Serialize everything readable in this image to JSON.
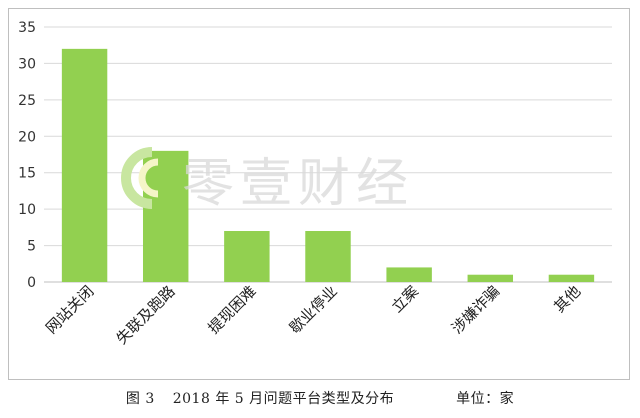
{
  "chart_data": {
    "type": "bar",
    "categories": [
      "网站关闭",
      "失联及跑路",
      "提现困难",
      "歇业停业",
      "立案",
      "涉嫌诈骗",
      "其他"
    ],
    "values": [
      32,
      18,
      7,
      7,
      2,
      1,
      1
    ],
    "y_ticks": [
      "0",
      "5",
      "10",
      "15",
      "20",
      "25",
      "30",
      "35"
    ],
    "ylim": [
      0,
      35
    ],
    "grid": true,
    "bar_color": "#92d050",
    "grid_color": "#d9d9d9",
    "axis_color": "#bfbfbf"
  },
  "caption": {
    "figure_label": "图 3",
    "title": "2018 年 5 月问题平台类型及分布",
    "unit": "单位：家"
  },
  "watermark": {
    "text": "零壹财经",
    "logo_colors": [
      "#c8e6a0",
      "#f5f5c8"
    ]
  }
}
